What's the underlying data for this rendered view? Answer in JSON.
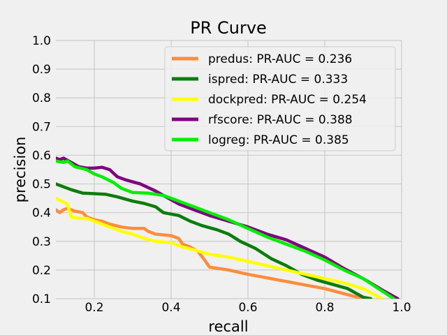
{
  "chart_data": {
    "type": "line",
    "title": "PR Curve",
    "xlabel": "recall",
    "ylabel": "precision",
    "xlim": [
      0.1,
      1.0
    ],
    "ylim": [
      0.1,
      1.0
    ],
    "xticks": [
      0.2,
      0.4,
      0.6,
      0.8,
      1.0
    ],
    "yticks": [
      0.1,
      0.2,
      0.3,
      0.4,
      0.5,
      0.6,
      0.7,
      0.8,
      0.9,
      1.0
    ],
    "xtick_labels": [
      "0.2",
      "0.4",
      "0.6",
      "0.8",
      "1.0"
    ],
    "ytick_labels": [
      "0.1",
      "0.2",
      "0.3",
      "0.4",
      "0.5",
      "0.6",
      "0.7",
      "0.8",
      "0.9",
      "1.0"
    ],
    "grid": true,
    "legend_position": "top-right",
    "series": [
      {
        "name": "predus: PR-AUC = 0.236",
        "color": "#fc8d3c",
        "points": [
          [
            0.1,
            0.41
          ],
          [
            0.11,
            0.4
          ],
          [
            0.12,
            0.41
          ],
          [
            0.13,
            0.415
          ],
          [
            0.14,
            0.41
          ],
          [
            0.15,
            0.405
          ],
          [
            0.17,
            0.4
          ],
          [
            0.18,
            0.385
          ],
          [
            0.2,
            0.375
          ],
          [
            0.22,
            0.37
          ],
          [
            0.24,
            0.36
          ],
          [
            0.27,
            0.35
          ],
          [
            0.3,
            0.345
          ],
          [
            0.33,
            0.345
          ],
          [
            0.34,
            0.335
          ],
          [
            0.36,
            0.325
          ],
          [
            0.4,
            0.32
          ],
          [
            0.42,
            0.31
          ],
          [
            0.43,
            0.29
          ],
          [
            0.45,
            0.28
          ],
          [
            0.47,
            0.265
          ],
          [
            0.49,
            0.23
          ],
          [
            0.5,
            0.21
          ],
          [
            0.55,
            0.2
          ],
          [
            0.6,
            0.185
          ],
          [
            0.7,
            0.16
          ],
          [
            0.8,
            0.135
          ],
          [
            0.9,
            0.1
          ]
        ]
      },
      {
        "name": "ispred: PR-AUC = 0.333",
        "color": "#0a7d0a",
        "points": [
          [
            0.1,
            0.5
          ],
          [
            0.12,
            0.49
          ],
          [
            0.14,
            0.48
          ],
          [
            0.17,
            0.468
          ],
          [
            0.2,
            0.466
          ],
          [
            0.23,
            0.464
          ],
          [
            0.26,
            0.455
          ],
          [
            0.3,
            0.44
          ],
          [
            0.33,
            0.432
          ],
          [
            0.36,
            0.42
          ],
          [
            0.38,
            0.4
          ],
          [
            0.42,
            0.39
          ],
          [
            0.45,
            0.37
          ],
          [
            0.48,
            0.355
          ],
          [
            0.52,
            0.34
          ],
          [
            0.55,
            0.325
          ],
          [
            0.58,
            0.3
          ],
          [
            0.62,
            0.275
          ],
          [
            0.66,
            0.24
          ],
          [
            0.7,
            0.215
          ],
          [
            0.74,
            0.185
          ],
          [
            0.78,
            0.165
          ],
          [
            0.82,
            0.15
          ],
          [
            0.86,
            0.135
          ],
          [
            0.9,
            0.105
          ],
          [
            0.92,
            0.1
          ]
        ]
      },
      {
        "name": "dockpred: PR-AUC = 0.254",
        "color": "#ffff00",
        "points": [
          [
            0.1,
            0.45
          ],
          [
            0.115,
            0.44
          ],
          [
            0.13,
            0.43
          ],
          [
            0.14,
            0.385
          ],
          [
            0.16,
            0.38
          ],
          [
            0.18,
            0.38
          ],
          [
            0.2,
            0.37
          ],
          [
            0.22,
            0.36
          ],
          [
            0.24,
            0.35
          ],
          [
            0.27,
            0.335
          ],
          [
            0.3,
            0.325
          ],
          [
            0.33,
            0.31
          ],
          [
            0.36,
            0.3
          ],
          [
            0.4,
            0.295
          ],
          [
            0.43,
            0.28
          ],
          [
            0.46,
            0.27
          ],
          [
            0.5,
            0.255
          ],
          [
            0.55,
            0.245
          ],
          [
            0.6,
            0.23
          ],
          [
            0.65,
            0.215
          ],
          [
            0.7,
            0.2
          ],
          [
            0.75,
            0.185
          ],
          [
            0.8,
            0.17
          ],
          [
            0.85,
            0.155
          ],
          [
            0.9,
            0.135
          ],
          [
            0.95,
            0.1
          ]
        ]
      },
      {
        "name": "rfscore: PR-AUC = 0.388",
        "color": "#800080",
        "points": [
          [
            0.1,
            0.59
          ],
          [
            0.11,
            0.585
          ],
          [
            0.12,
            0.59
          ],
          [
            0.14,
            0.575
          ],
          [
            0.16,
            0.56
          ],
          [
            0.18,
            0.555
          ],
          [
            0.2,
            0.555
          ],
          [
            0.22,
            0.558
          ],
          [
            0.24,
            0.55
          ],
          [
            0.26,
            0.525
          ],
          [
            0.28,
            0.515
          ],
          [
            0.32,
            0.5
          ],
          [
            0.36,
            0.475
          ],
          [
            0.38,
            0.46
          ],
          [
            0.42,
            0.43
          ],
          [
            0.46,
            0.41
          ],
          [
            0.5,
            0.39
          ],
          [
            0.55,
            0.37
          ],
          [
            0.6,
            0.35
          ],
          [
            0.65,
            0.325
          ],
          [
            0.7,
            0.305
          ],
          [
            0.75,
            0.275
          ],
          [
            0.8,
            0.245
          ],
          [
            0.85,
            0.205
          ],
          [
            0.9,
            0.17
          ],
          [
            0.95,
            0.13
          ],
          [
            0.99,
            0.1
          ]
        ]
      },
      {
        "name": "logreg: PR-AUC = 0.385",
        "color": "#00ee00",
        "points": [
          [
            0.1,
            0.58
          ],
          [
            0.12,
            0.575
          ],
          [
            0.13,
            0.58
          ],
          [
            0.15,
            0.56
          ],
          [
            0.18,
            0.55
          ],
          [
            0.2,
            0.535
          ],
          [
            0.22,
            0.525
          ],
          [
            0.25,
            0.505
          ],
          [
            0.27,
            0.485
          ],
          [
            0.3,
            0.47
          ],
          [
            0.34,
            0.468
          ],
          [
            0.38,
            0.46
          ],
          [
            0.42,
            0.44
          ],
          [
            0.46,
            0.42
          ],
          [
            0.5,
            0.4
          ],
          [
            0.55,
            0.375
          ],
          [
            0.6,
            0.345
          ],
          [
            0.65,
            0.315
          ],
          [
            0.7,
            0.29
          ],
          [
            0.75,
            0.265
          ],
          [
            0.8,
            0.235
          ],
          [
            0.85,
            0.2
          ],
          [
            0.9,
            0.17
          ],
          [
            0.94,
            0.135
          ],
          [
            0.98,
            0.1
          ]
        ]
      }
    ]
  }
}
